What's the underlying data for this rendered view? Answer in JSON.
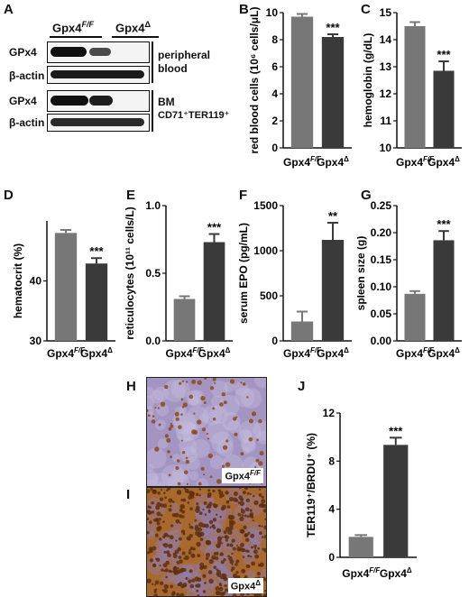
{
  "panels": {
    "a": "A",
    "b": "B",
    "c": "C",
    "d": "D",
    "e": "E",
    "f": "F",
    "g": "G",
    "h": "H",
    "i": "I",
    "j": "J"
  },
  "blot": {
    "col_ff": "Gpx4",
    "col_ff_sup": "F/F",
    "col_ko": "Gpx4",
    "col_ko_sup": "Δ",
    "row1": "GPx4",
    "row2": "β-actin",
    "row3": "GPx4",
    "row4": "β-actin",
    "group1_line1": "peripheral",
    "group1_line2": "blood",
    "group2_line1": "BM",
    "group2_line2": "CD71⁺TER119⁺"
  },
  "histology": {
    "h_label": "Gpx4",
    "h_sup": "F/F",
    "i_label": "Gpx4",
    "i_sup": "Δ"
  },
  "colors": {
    "ff_bar": "#777777",
    "ko_bar": "#3a3a3a",
    "h_bg": "#a394c2",
    "i_bg": "#a8682e"
  },
  "chart_data": [
    {
      "id": "B",
      "type": "bar",
      "categories": [
        "Gpx4F/F",
        "Gpx4Δ"
      ],
      "values": [
        9.7,
        8.2
      ],
      "errors": [
        0.2,
        0.2
      ],
      "ylabel": "red blood cells (10⁶ cells/μL)",
      "ylim": [
        0,
        10
      ],
      "ticks": [
        0,
        2,
        4,
        6,
        8,
        10
      ],
      "significance": [
        "",
        "***"
      ]
    },
    {
      "id": "C",
      "type": "bar",
      "categories": [
        "Gpx4F/F",
        "Gpx4Δ"
      ],
      "values": [
        14.5,
        12.85
      ],
      "errors": [
        0.15,
        0.35
      ],
      "ylabel": "hemoglobin (g/dL)",
      "ylim": [
        10,
        15
      ],
      "ticks": [
        10,
        11,
        12,
        13,
        14,
        15
      ],
      "significance": [
        "",
        "***"
      ]
    },
    {
      "id": "D",
      "type": "bar",
      "categories": [
        "Gpx4F/F",
        "Gpx4Δ"
      ],
      "values": [
        48.0,
        42.9
      ],
      "errors": [
        0.5,
        0.9
      ],
      "ylabel": "hematocrit (%)",
      "ylim": [
        30,
        50
      ],
      "ticks": [
        30,
        40
      ],
      "significance": [
        "",
        "***"
      ]
    },
    {
      "id": "E",
      "type": "bar",
      "categories": [
        "Gpx4F/F",
        "Gpx4Δ"
      ],
      "values": [
        0.31,
        0.73
      ],
      "errors": [
        0.02,
        0.06
      ],
      "ylabel": "reticulocytes (10¹¹ cells/L)",
      "ylim": [
        0,
        1.0
      ],
      "ticks": [
        0.0,
        0.5,
        1.0
      ],
      "significance": [
        "",
        "***"
      ]
    },
    {
      "id": "F",
      "type": "bar",
      "categories": [
        "Gpx4F/F",
        "Gpx4Δ"
      ],
      "values": [
        215,
        1120
      ],
      "errors": [
        110,
        190
      ],
      "ylabel": "serum EPO (pg/mL)",
      "ylim": [
        0,
        1500
      ],
      "ticks": [
        0,
        500,
        1000,
        1500
      ],
      "significance": [
        "",
        "**"
      ]
    },
    {
      "id": "G",
      "type": "bar",
      "categories": [
        "Gpx4F/F",
        "Gpx4Δ"
      ],
      "values": [
        0.087,
        0.186
      ],
      "errors": [
        0.005,
        0.017
      ],
      "ylabel": "spleen size (g)",
      "ylim": [
        0,
        0.25
      ],
      "ticks": [
        0.0,
        0.05,
        0.1,
        0.15,
        0.2,
        0.25
      ],
      "significance": [
        "",
        "***"
      ]
    },
    {
      "id": "J",
      "type": "bar",
      "categories": [
        "Gpx4F/F",
        "Gpx4Δ"
      ],
      "values": [
        1.7,
        9.35
      ],
      "errors": [
        0.15,
        0.6
      ],
      "ylabel": "TER119⁺/BRDU⁺ (%)",
      "ylim": [
        0,
        12
      ],
      "ticks": [
        0,
        4,
        8,
        12
      ],
      "significance": [
        "",
        "***"
      ]
    }
  ]
}
